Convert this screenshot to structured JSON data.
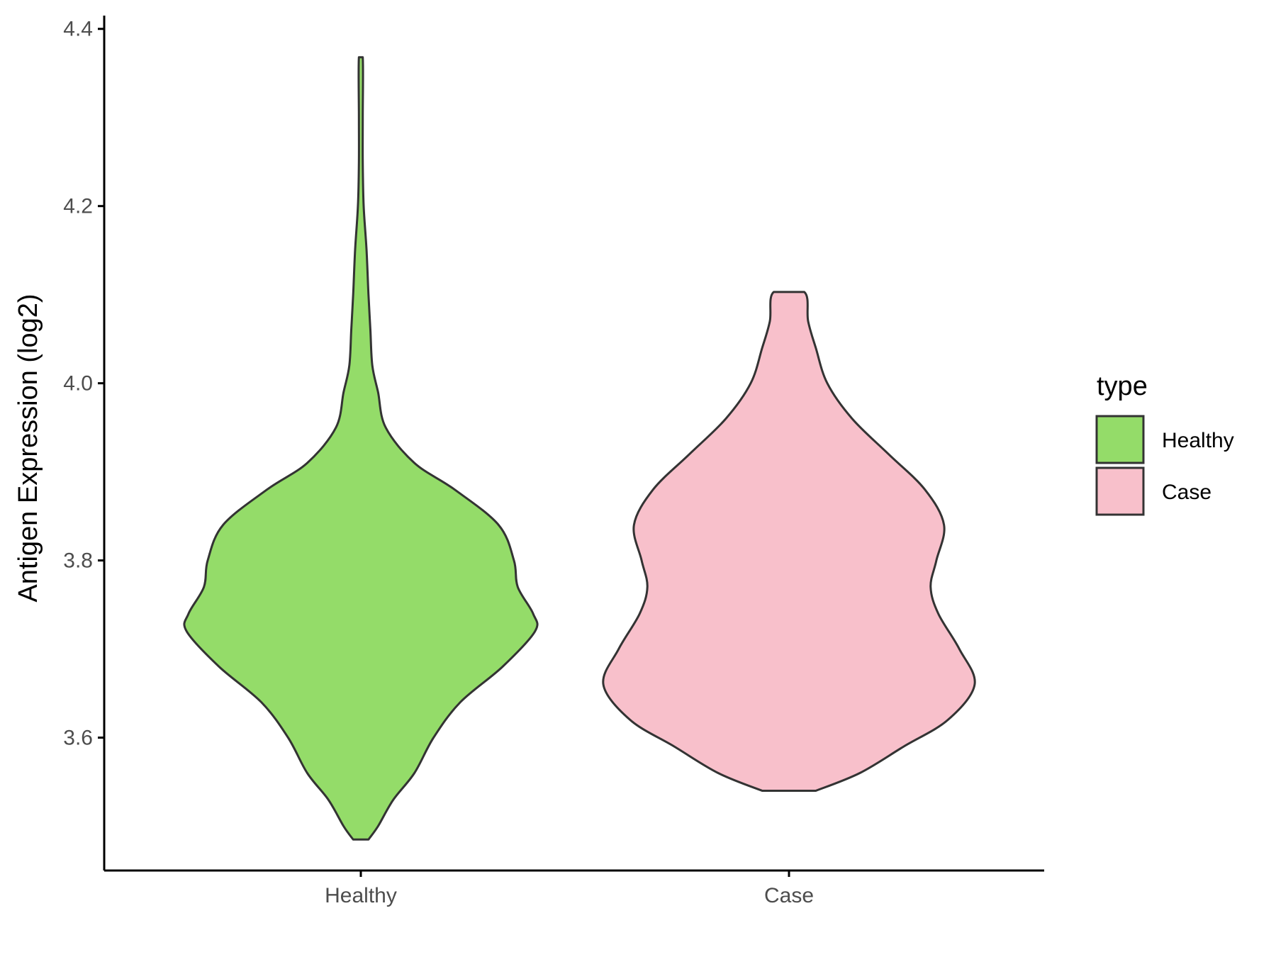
{
  "chart_data": {
    "type": "violin",
    "ylabel": "Antigen Expression (log2)",
    "xlabel": "",
    "ylim": [
      3.45,
      4.415
    ],
    "yticks": [
      3.6,
      3.8,
      4.0,
      4.2,
      4.4
    ],
    "ytick_labels": [
      "3.6",
      "3.8",
      "4.0",
      "4.2",
      "4.4"
    ],
    "categories": [
      "Healthy",
      "Case"
    ],
    "grid": false,
    "legend": {
      "title": "type",
      "position": "right",
      "entries": [
        "Healthy",
        "Case"
      ]
    },
    "series": [
      {
        "name": "Healthy",
        "color": "#94dc69",
        "min": 3.485,
        "max": 4.368,
        "density_profile": [
          [
            3.485,
            0.04
          ],
          [
            3.5,
            0.09
          ],
          [
            3.53,
            0.17
          ],
          [
            3.56,
            0.28
          ],
          [
            3.6,
            0.38
          ],
          [
            3.64,
            0.52
          ],
          [
            3.68,
            0.74
          ],
          [
            3.72,
            0.91
          ],
          [
            3.74,
            0.9
          ],
          [
            3.77,
            0.82
          ],
          [
            3.8,
            0.8
          ],
          [
            3.84,
            0.72
          ],
          [
            3.88,
            0.49
          ],
          [
            3.91,
            0.28
          ],
          [
            3.95,
            0.13
          ],
          [
            3.99,
            0.09
          ],
          [
            4.02,
            0.06
          ],
          [
            4.06,
            0.05
          ],
          [
            4.1,
            0.04
          ],
          [
            4.15,
            0.03
          ],
          [
            4.2,
            0.015
          ],
          [
            4.25,
            0.01
          ],
          [
            4.3,
            0.01
          ],
          [
            4.368,
            0.01
          ]
        ]
      },
      {
        "name": "Case",
        "color": "#f8c0cb",
        "min": 3.54,
        "max": 4.103,
        "density_profile": [
          [
            3.54,
            0.14
          ],
          [
            3.56,
            0.37
          ],
          [
            3.59,
            0.6
          ],
          [
            3.62,
            0.83
          ],
          [
            3.66,
            0.97
          ],
          [
            3.7,
            0.89
          ],
          [
            3.74,
            0.78
          ],
          [
            3.77,
            0.74
          ],
          [
            3.8,
            0.77
          ],
          [
            3.84,
            0.81
          ],
          [
            3.88,
            0.71
          ],
          [
            3.92,
            0.52
          ],
          [
            3.96,
            0.33
          ],
          [
            4.0,
            0.2
          ],
          [
            4.04,
            0.14
          ],
          [
            4.07,
            0.1
          ],
          [
            4.103,
            0.08
          ]
        ]
      }
    ]
  }
}
